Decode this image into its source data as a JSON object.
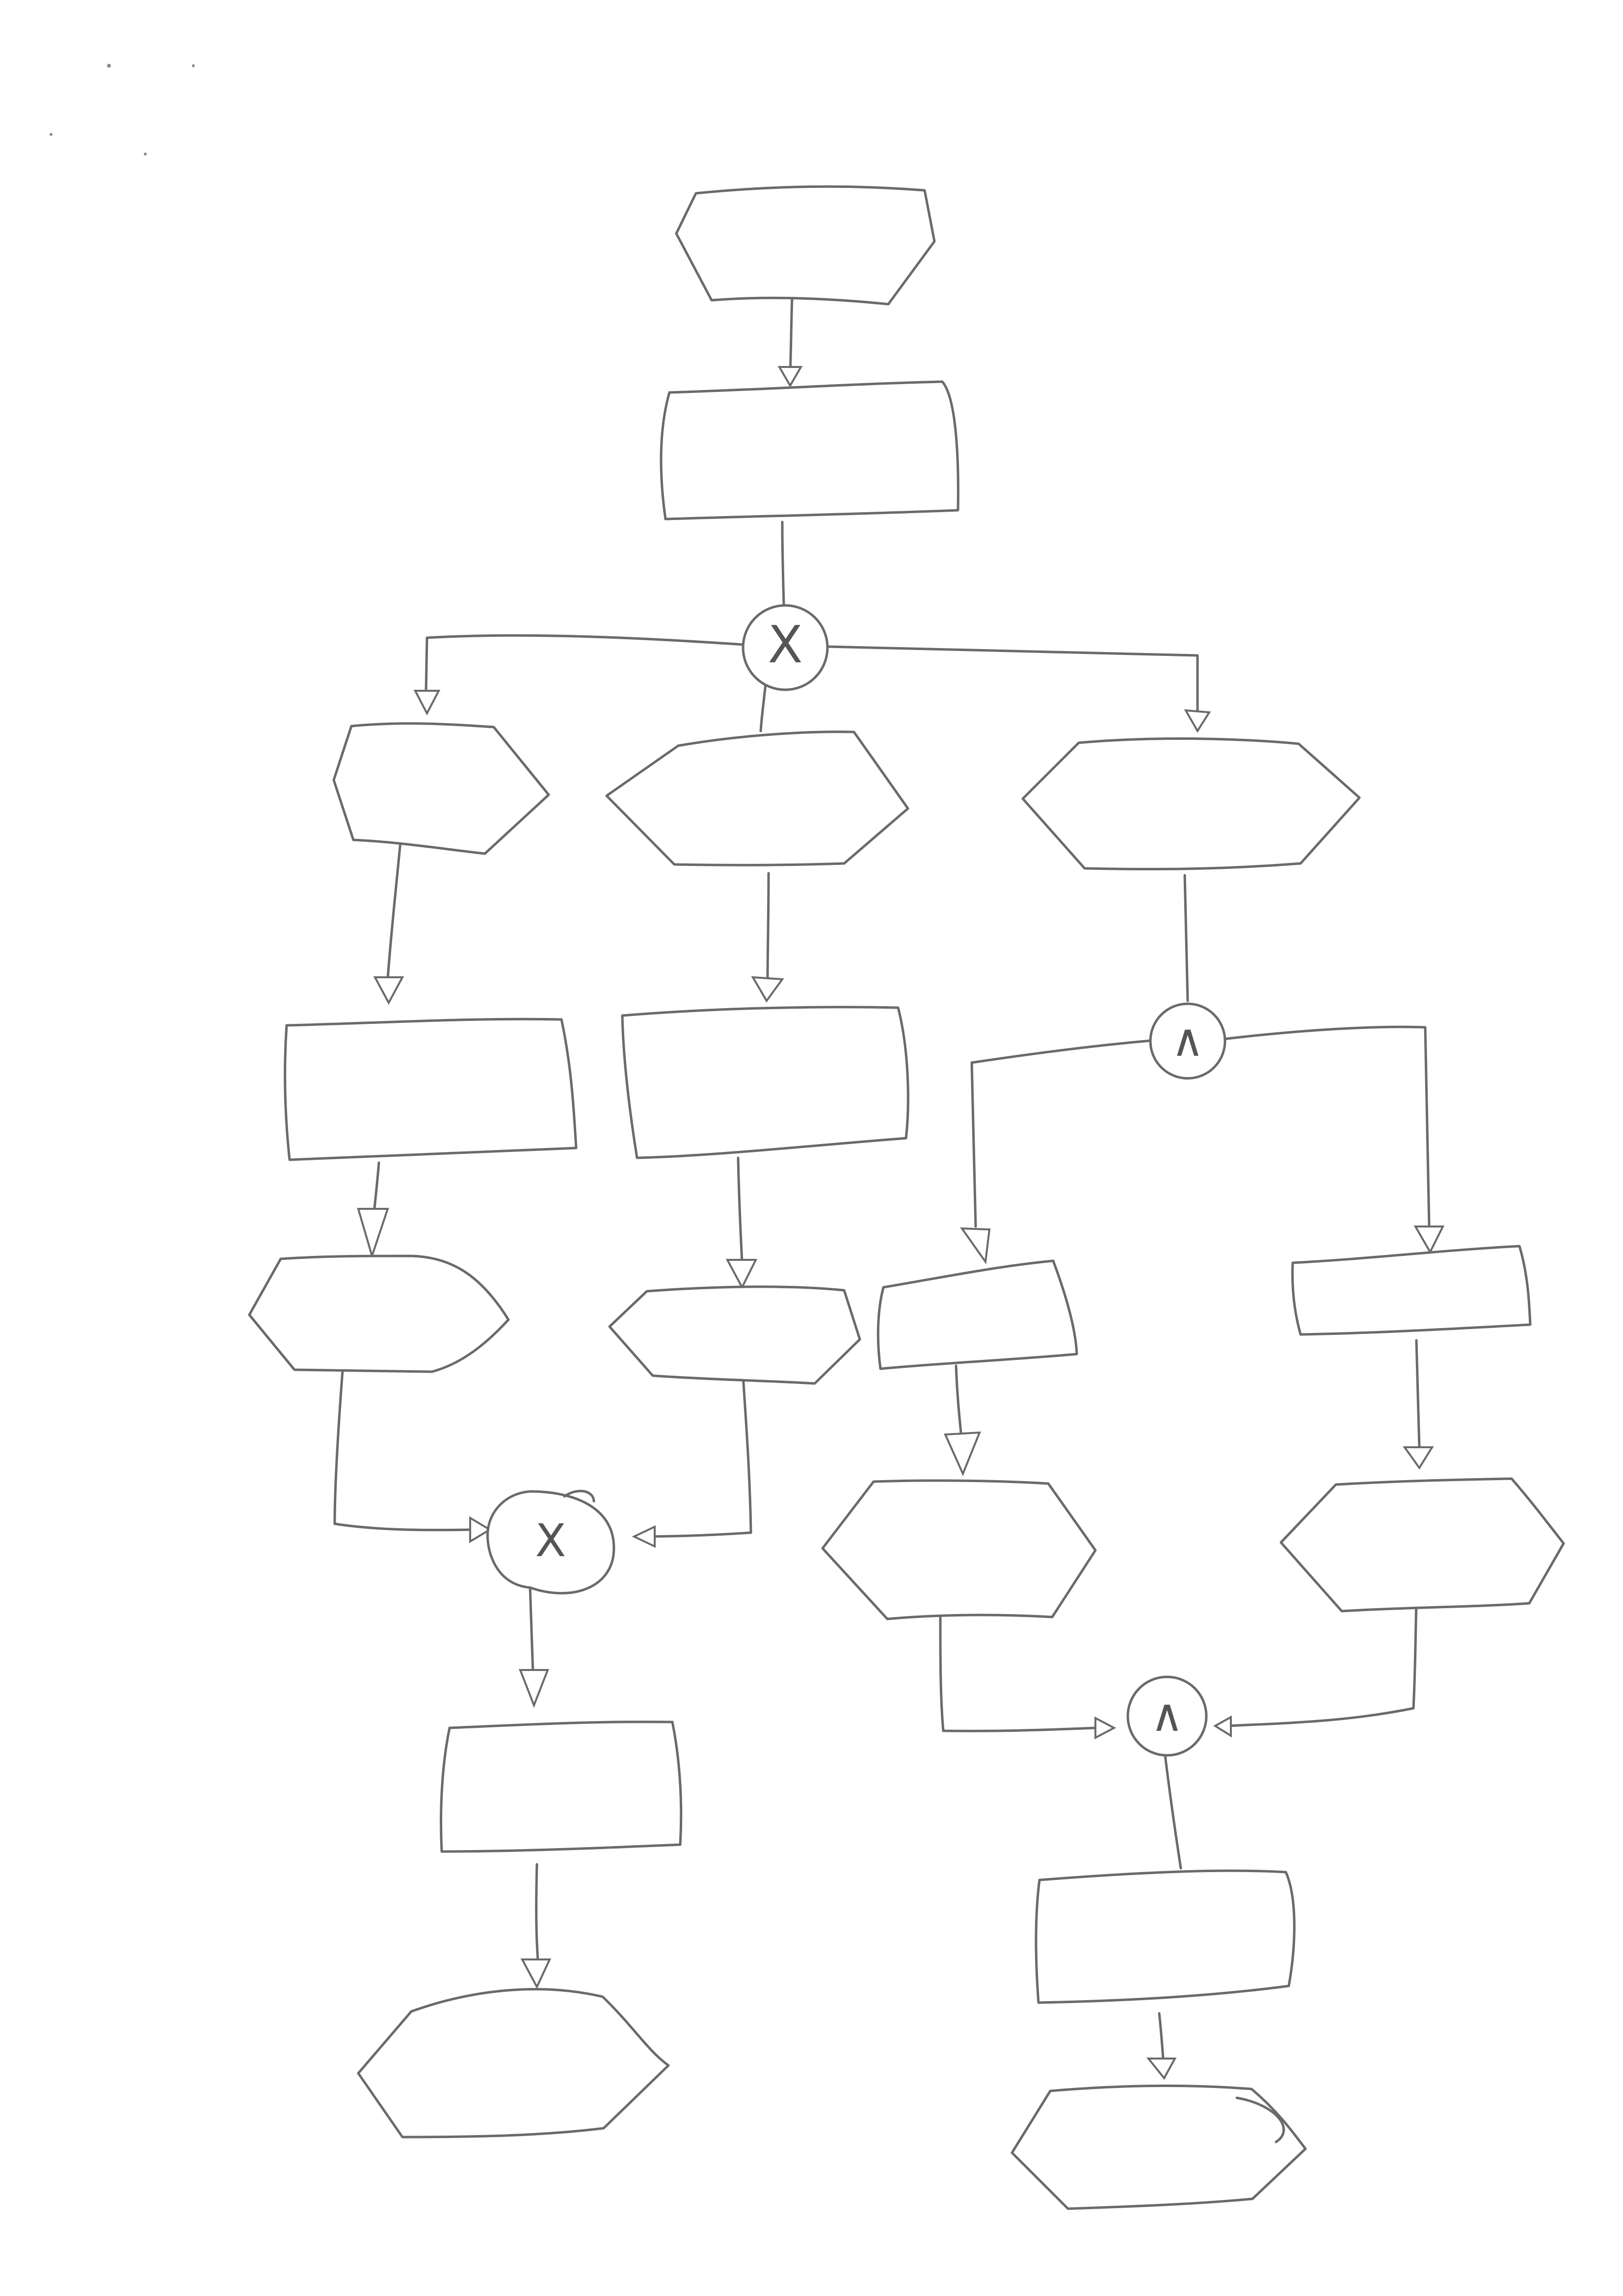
{
  "diagram": {
    "style": "hand-drawn sketch",
    "stroke_color": "#6a6a6a",
    "background": "#ffffff",
    "nodes": [
      {
        "id": "start-event",
        "kind": "event"
      },
      {
        "id": "function-1",
        "kind": "function"
      },
      {
        "id": "xor-split",
        "kind": "gateway",
        "symbol": "X"
      },
      {
        "id": "event-left",
        "kind": "event"
      },
      {
        "id": "event-middle",
        "kind": "event"
      },
      {
        "id": "event-right",
        "kind": "event"
      },
      {
        "id": "function-left",
        "kind": "function"
      },
      {
        "id": "function-middle",
        "kind": "function"
      },
      {
        "id": "and-split",
        "kind": "gateway",
        "symbol": "∧"
      },
      {
        "id": "event-left-2",
        "kind": "event"
      },
      {
        "id": "event-middle-2",
        "kind": "event"
      },
      {
        "id": "function-and-left",
        "kind": "function"
      },
      {
        "id": "function-and-right",
        "kind": "function"
      },
      {
        "id": "xor-join",
        "kind": "gateway",
        "symbol": "X"
      },
      {
        "id": "event-and-left",
        "kind": "event"
      },
      {
        "id": "event-and-right",
        "kind": "event"
      },
      {
        "id": "function-xor-result",
        "kind": "function"
      },
      {
        "id": "and-join",
        "kind": "gateway",
        "symbol": "∧"
      },
      {
        "id": "end-event-left",
        "kind": "event"
      },
      {
        "id": "function-and-result",
        "kind": "function"
      },
      {
        "id": "end-event-right",
        "kind": "event"
      }
    ],
    "edges": [
      {
        "from": "start-event",
        "to": "function-1"
      },
      {
        "from": "function-1",
        "to": "xor-split"
      },
      {
        "from": "xor-split",
        "to": "event-left"
      },
      {
        "from": "xor-split",
        "to": "event-middle"
      },
      {
        "from": "xor-split",
        "to": "event-right"
      },
      {
        "from": "event-left",
        "to": "function-left"
      },
      {
        "from": "event-middle",
        "to": "function-middle"
      },
      {
        "from": "event-right",
        "to": "and-split"
      },
      {
        "from": "function-left",
        "to": "event-left-2"
      },
      {
        "from": "function-middle",
        "to": "event-middle-2"
      },
      {
        "from": "and-split",
        "to": "function-and-left"
      },
      {
        "from": "and-split",
        "to": "function-and-right"
      },
      {
        "from": "event-left-2",
        "to": "xor-join"
      },
      {
        "from": "event-middle-2",
        "to": "xor-join"
      },
      {
        "from": "function-and-left",
        "to": "event-and-left"
      },
      {
        "from": "function-and-right",
        "to": "event-and-right"
      },
      {
        "from": "xor-join",
        "to": "function-xor-result"
      },
      {
        "from": "event-and-left",
        "to": "and-join"
      },
      {
        "from": "event-and-right",
        "to": "and-join"
      },
      {
        "from": "function-xor-result",
        "to": "end-event-left"
      },
      {
        "from": "and-join",
        "to": "function-and-result"
      },
      {
        "from": "function-and-result",
        "to": "end-event-right"
      }
    ]
  }
}
